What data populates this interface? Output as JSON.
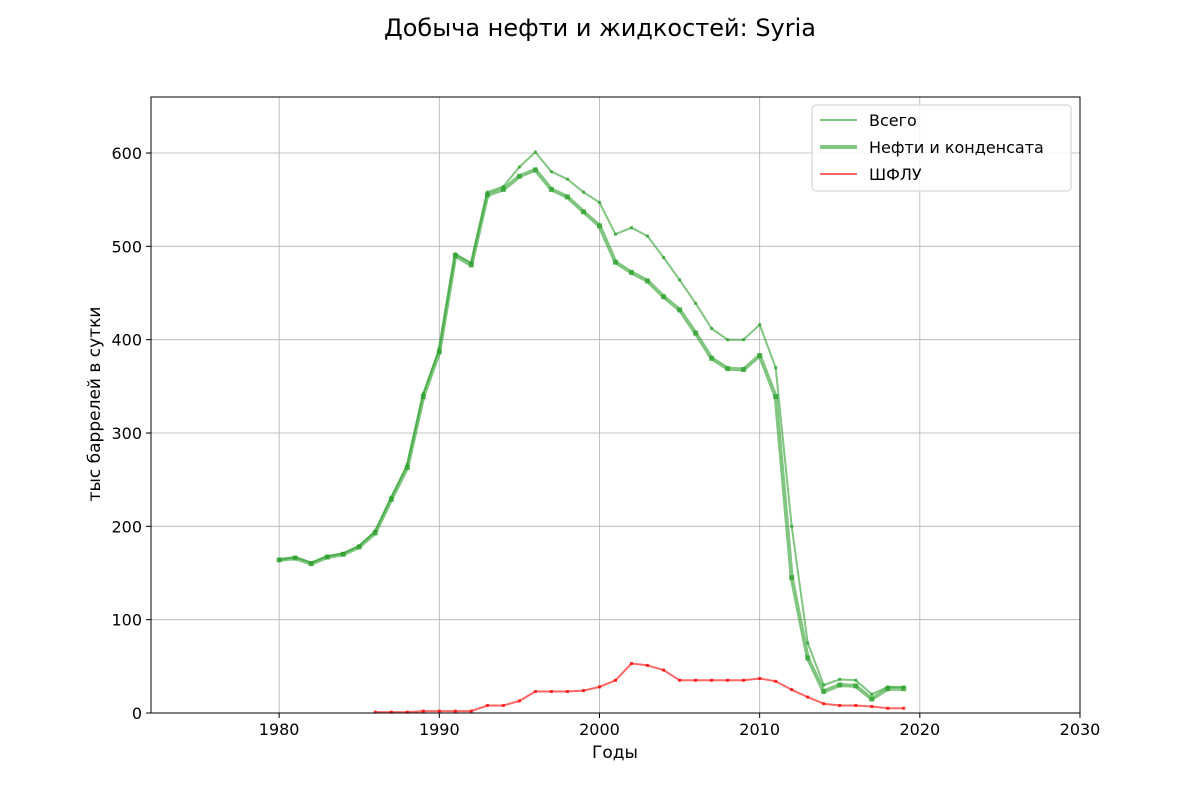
{
  "chart_data": {
    "type": "line",
    "title": "Добыча нефти и жидкостей: Syria",
    "xlabel": "Годы",
    "ylabel": "тыс баррелей в сутки",
    "xlim": [
      1972,
      2030
    ],
    "ylim": [
      0,
      660
    ],
    "xticks": [
      1980,
      1990,
      2000,
      2010,
      2020,
      2030
    ],
    "yticks": [
      0,
      100,
      200,
      300,
      400,
      500,
      600
    ],
    "grid": true,
    "legend_position": "top-right",
    "series": [
      {
        "name": "Всего",
        "color": "#2ca02c",
        "style": "thin",
        "x": [
          1980,
          1981,
          1982,
          1983,
          1984,
          1985,
          1986,
          1987,
          1988,
          1989,
          1990,
          1991,
          1992,
          1993,
          1994,
          1995,
          1996,
          1997,
          1998,
          1999,
          2000,
          2001,
          2002,
          2003,
          2004,
          2005,
          2006,
          2007,
          2008,
          2009,
          2010,
          2011,
          2012,
          2013,
          2014,
          2015,
          2016,
          2017,
          2018,
          2019
        ],
        "values": [
          164,
          167,
          161,
          168,
          171,
          179,
          195,
          231,
          266,
          342,
          390,
          492,
          482,
          558,
          564,
          585,
          601,
          580,
          572,
          558,
          547,
          513,
          520,
          511,
          488,
          464,
          439,
          412,
          400,
          400,
          416,
          370,
          200,
          75,
          30,
          36,
          35,
          20,
          28,
          28
        ]
      },
      {
        "name": "Нефти и конденсата",
        "color": "#2ca02c",
        "style": "thick",
        "x": [
          1980,
          1981,
          1982,
          1983,
          1984,
          1985,
          1986,
          1987,
          1988,
          1989,
          1990,
          1991,
          1992,
          1993,
          1994,
          1995,
          1996,
          1997,
          1998,
          1999,
          2000,
          2001,
          2002,
          2003,
          2004,
          2005,
          2006,
          2007,
          2008,
          2009,
          2010,
          2011,
          2012,
          2013,
          2014,
          2015,
          2016,
          2017,
          2018,
          2019
        ],
        "values": [
          164,
          166,
          160,
          167,
          170,
          178,
          193,
          229,
          263,
          339,
          387,
          490,
          480,
          555,
          561,
          575,
          582,
          561,
          553,
          537,
          522,
          483,
          472,
          463,
          446,
          432,
          407,
          380,
          369,
          368,
          383,
          339,
          145,
          59,
          23,
          30,
          29,
          15,
          26,
          26
        ]
      },
      {
        "name": "ШФЛУ",
        "color": "#ff0000",
        "style": "thin",
        "x": [
          1986,
          1987,
          1988,
          1989,
          1990,
          1991,
          1992,
          1993,
          1994,
          1995,
          1996,
          1997,
          1998,
          1999,
          2000,
          2001,
          2002,
          2003,
          2004,
          2005,
          2006,
          2007,
          2008,
          2009,
          2010,
          2011,
          2012,
          2013,
          2014,
          2015,
          2016,
          2017,
          2018,
          2019
        ],
        "values": [
          1,
          1,
          1,
          2,
          2,
          2,
          2,
          8,
          8,
          13,
          23,
          23,
          23,
          24,
          28,
          35,
          53,
          51,
          46,
          35,
          35,
          35,
          35,
          35,
          37,
          34,
          25,
          17,
          10,
          8,
          8,
          7,
          5,
          5
        ]
      }
    ]
  }
}
